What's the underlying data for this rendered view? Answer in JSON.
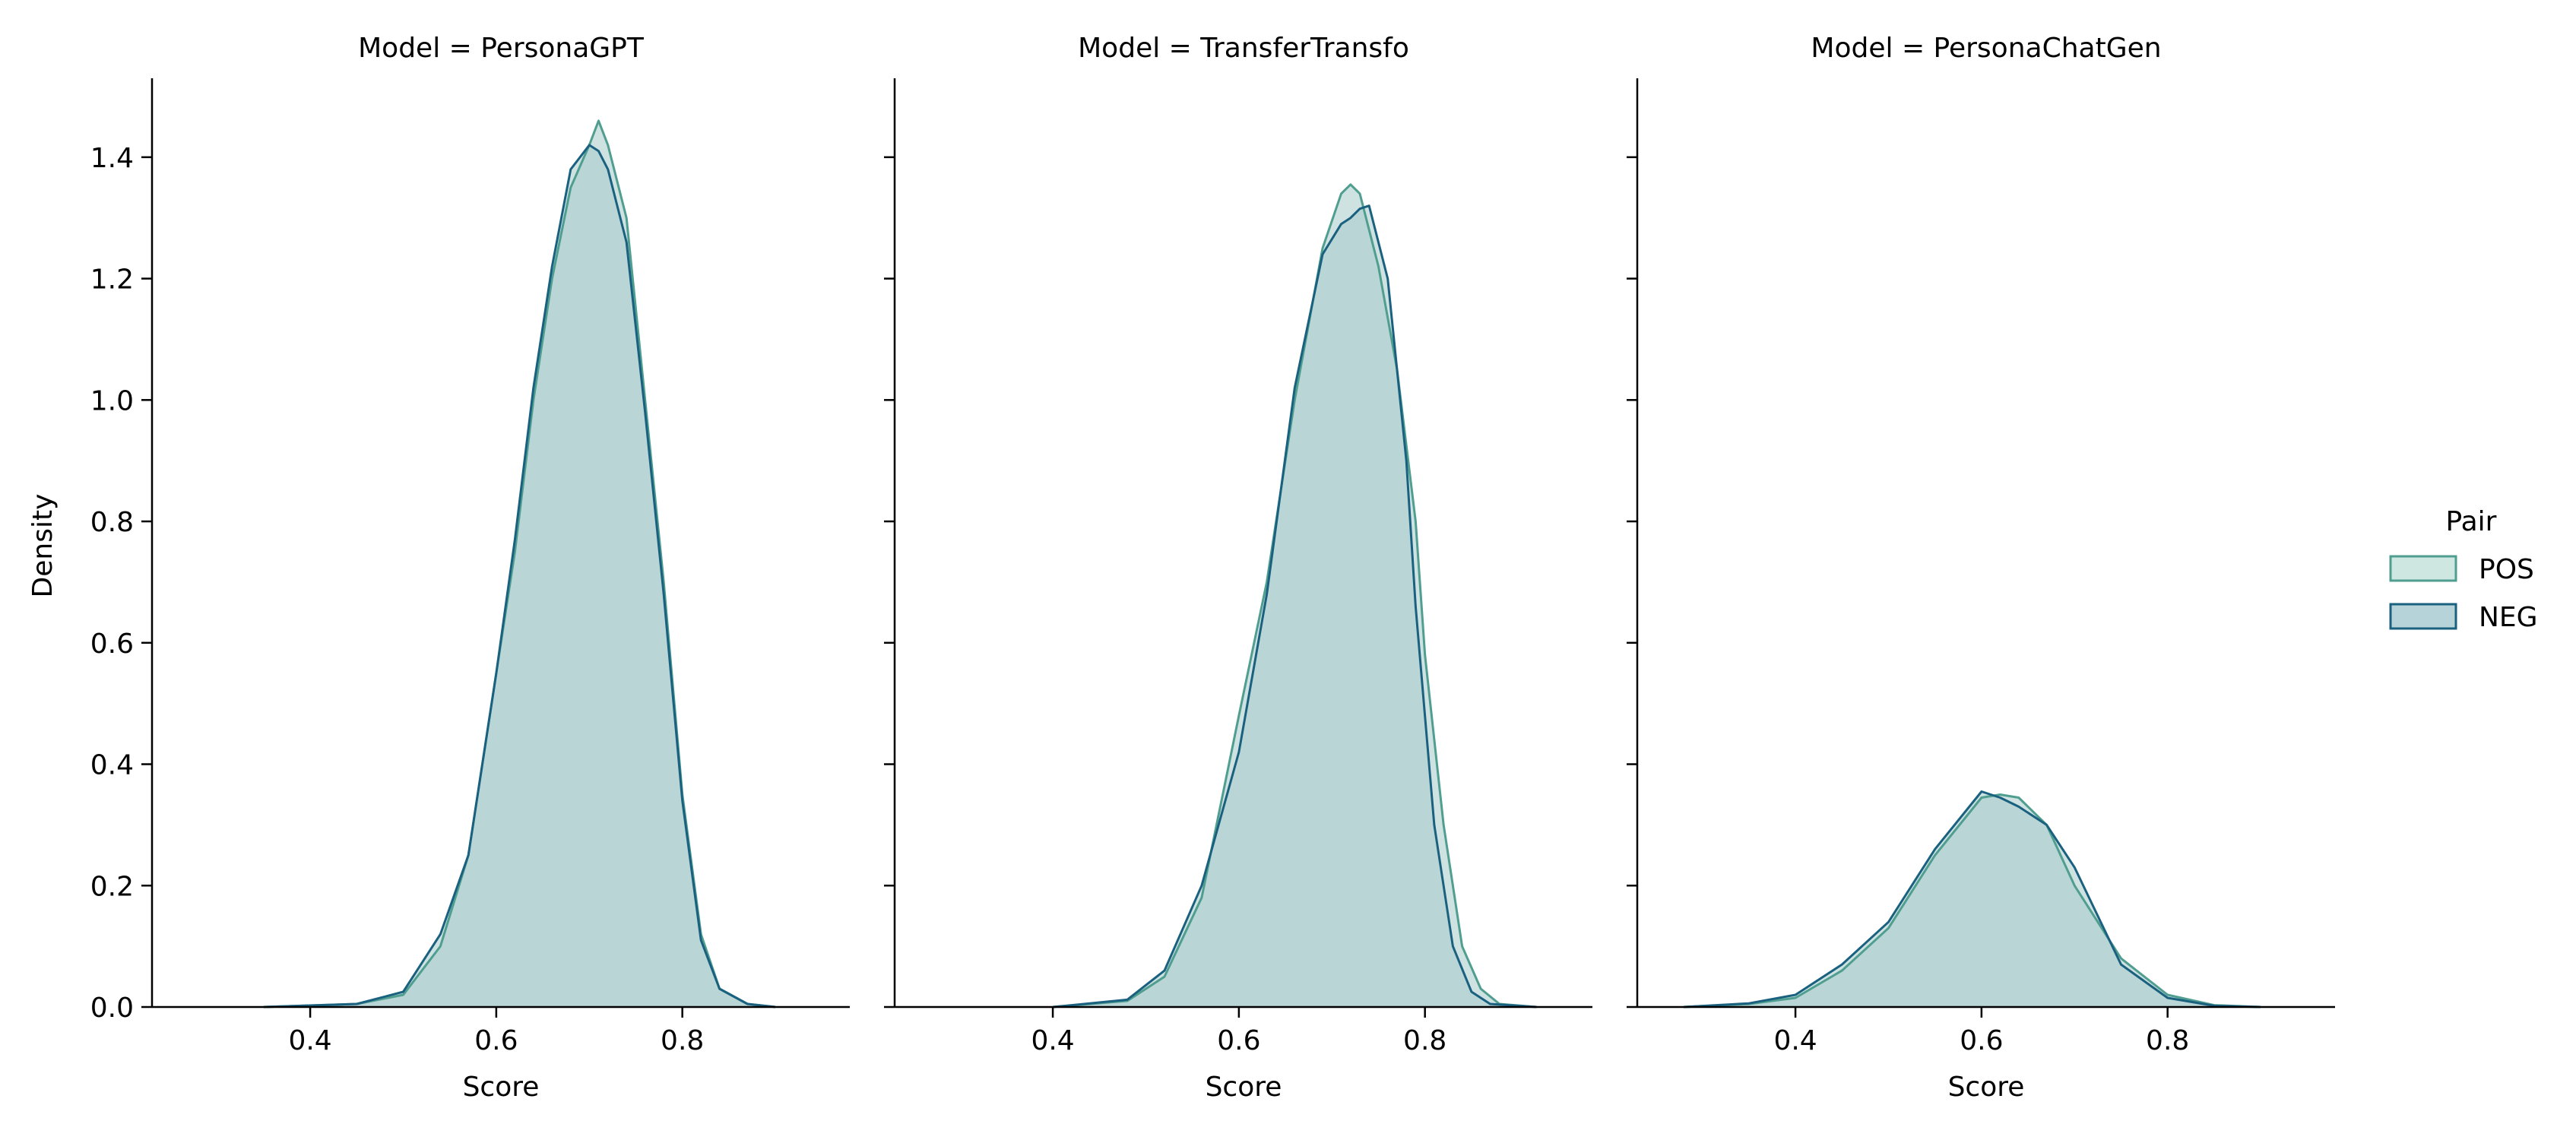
{
  "chart_data": {
    "type": "area",
    "chart_kind": "kde",
    "grid": false,
    "x_tick_values": [
      0.4,
      0.6,
      0.8
    ],
    "y_tick_values": [
      0.0,
      0.2,
      0.4,
      0.6,
      0.8,
      1.0,
      1.2,
      1.4
    ],
    "x_tick_labels": [
      "0.4",
      "0.6",
      "0.8"
    ],
    "y_tick_labels": [
      "0.0",
      "0.2",
      "0.4",
      "0.6",
      "0.8",
      "1.0",
      "1.2",
      "1.4"
    ],
    "xlim": [
      0.23,
      0.98
    ],
    "ylim": [
      0.0,
      1.53
    ],
    "ylabel": "Density",
    "legend": {
      "title": "Pair",
      "placement": "right",
      "entries": [
        {
          "name": "POS",
          "color": "#4f9e90"
        },
        {
          "name": "NEG",
          "color": "#1a6180"
        }
      ]
    },
    "series_colors": {
      "POS": {
        "fill": "#cfe7e1",
        "stroke": "#4f9e90"
      },
      "NEG": {
        "fill": "#b5d3d8",
        "stroke": "#1a6180"
      },
      "overlap": "#a8cacb"
    },
    "panels": [
      {
        "title": "Model = PersonaGPT",
        "xlabel": "Score",
        "series": [
          {
            "name": "POS",
            "x": [
              0.35,
              0.45,
              0.5,
              0.54,
              0.57,
              0.6,
              0.62,
              0.64,
              0.66,
              0.68,
              0.7,
              0.71,
              0.72,
              0.74,
              0.76,
              0.78,
              0.8,
              0.82,
              0.84,
              0.87,
              0.9
            ],
            "y": [
              0.0,
              0.005,
              0.02,
              0.1,
              0.25,
              0.55,
              0.75,
              1.0,
              1.2,
              1.35,
              1.42,
              1.46,
              1.42,
              1.3,
              1.0,
              0.7,
              0.35,
              0.12,
              0.03,
              0.005,
              0.0
            ]
          },
          {
            "name": "NEG",
            "x": [
              0.35,
              0.45,
              0.5,
              0.54,
              0.57,
              0.6,
              0.62,
              0.64,
              0.66,
              0.68,
              0.7,
              0.71,
              0.72,
              0.74,
              0.76,
              0.78,
              0.8,
              0.82,
              0.84,
              0.87,
              0.9
            ],
            "y": [
              0.0,
              0.005,
              0.025,
              0.12,
              0.25,
              0.55,
              0.77,
              1.02,
              1.22,
              1.38,
              1.42,
              1.41,
              1.38,
              1.26,
              0.98,
              0.68,
              0.34,
              0.11,
              0.03,
              0.005,
              0.0
            ]
          }
        ]
      },
      {
        "title": "Model = TransferTransfo",
        "xlabel": "Score",
        "series": [
          {
            "name": "POS",
            "x": [
              0.4,
              0.48,
              0.52,
              0.56,
              0.6,
              0.63,
              0.66,
              0.69,
              0.71,
              0.72,
              0.73,
              0.75,
              0.77,
              0.79,
              0.8,
              0.82,
              0.84,
              0.86,
              0.88,
              0.92
            ],
            "y": [
              0.0,
              0.01,
              0.05,
              0.18,
              0.48,
              0.7,
              1.0,
              1.25,
              1.34,
              1.355,
              1.34,
              1.22,
              1.05,
              0.8,
              0.58,
              0.3,
              0.1,
              0.03,
              0.005,
              0.0
            ]
          },
          {
            "name": "NEG",
            "x": [
              0.4,
              0.48,
              0.52,
              0.56,
              0.6,
              0.63,
              0.66,
              0.69,
              0.71,
              0.72,
              0.73,
              0.74,
              0.76,
              0.78,
              0.79,
              0.81,
              0.83,
              0.85,
              0.87,
              0.92
            ],
            "y": [
              0.0,
              0.012,
              0.06,
              0.2,
              0.42,
              0.68,
              1.02,
              1.24,
              1.29,
              1.3,
              1.315,
              1.32,
              1.2,
              0.9,
              0.66,
              0.3,
              0.1,
              0.025,
              0.005,
              0.0
            ]
          }
        ]
      },
      {
        "title": "Model = PersonaChatGen",
        "xlabel": "Score",
        "series": [
          {
            "name": "POS",
            "x": [
              0.28,
              0.35,
              0.4,
              0.45,
              0.5,
              0.55,
              0.6,
              0.62,
              0.64,
              0.67,
              0.7,
              0.75,
              0.8,
              0.85,
              0.9
            ],
            "y": [
              0.0,
              0.005,
              0.015,
              0.06,
              0.13,
              0.25,
              0.345,
              0.35,
              0.345,
              0.3,
              0.2,
              0.08,
              0.02,
              0.003,
              0.0
            ]
          },
          {
            "name": "NEG",
            "x": [
              0.28,
              0.35,
              0.4,
              0.45,
              0.5,
              0.55,
              0.6,
              0.62,
              0.64,
              0.67,
              0.7,
              0.75,
              0.8,
              0.85,
              0.9
            ],
            "y": [
              0.0,
              0.006,
              0.02,
              0.07,
              0.14,
              0.26,
              0.355,
              0.345,
              0.33,
              0.3,
              0.23,
              0.07,
              0.015,
              0.002,
              0.0
            ]
          }
        ]
      }
    ]
  }
}
